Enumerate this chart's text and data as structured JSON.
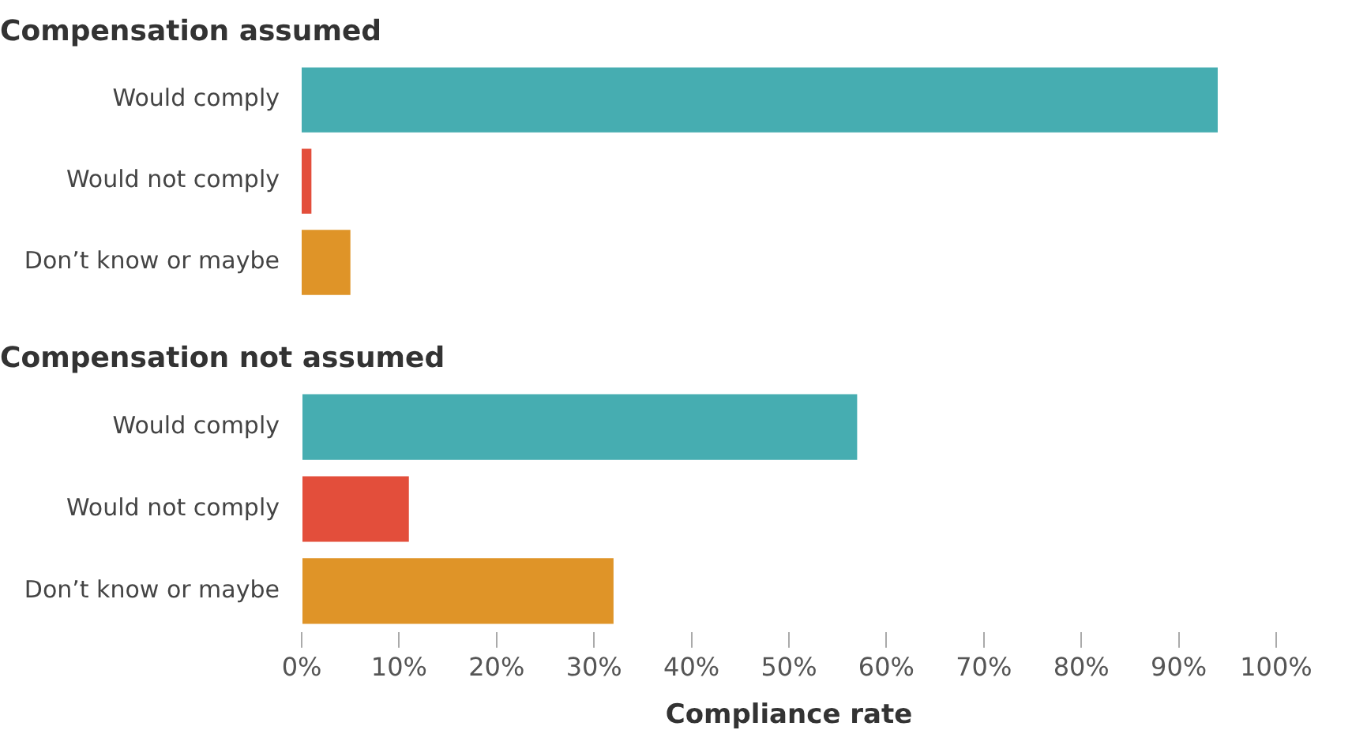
{
  "chart_data": [
    {
      "type": "bar",
      "orientation": "horizontal",
      "title": "Compensation assumed",
      "categories": [
        "Would comply",
        "Would not comply",
        "Don’t know or maybe"
      ],
      "values": [
        94,
        1,
        5
      ],
      "colors": [
        "#46adb1",
        "#e34e3b",
        "#df9428"
      ],
      "xlim": [
        0,
        100
      ],
      "tick_labels": "y",
      "grid": false,
      "legend": false
    },
    {
      "type": "bar",
      "orientation": "horizontal",
      "title": "Compensation not assumed",
      "categories": [
        "Would comply",
        "Would not comply",
        "Don’t know or maybe"
      ],
      "values": [
        57,
        11,
        32
      ],
      "colors": [
        "#46adb1",
        "#e34e3b",
        "#df9428"
      ],
      "xlim": [
        0,
        100
      ],
      "xticks": [
        {
          "value": 0,
          "label": "0%"
        },
        {
          "value": 10,
          "label": "10%"
        },
        {
          "value": 20,
          "label": "20%"
        },
        {
          "value": 30,
          "label": "30%"
        },
        {
          "value": 40,
          "label": "40%"
        },
        {
          "value": 50,
          "label": "50%"
        },
        {
          "value": 60,
          "label": "60%"
        },
        {
          "value": 70,
          "label": "70%"
        },
        {
          "value": 80,
          "label": "80%"
        },
        {
          "value": 90,
          "label": "90%"
        },
        {
          "value": 100,
          "label": "100%"
        }
      ],
      "xlabel": "Compliance rate",
      "grid": false,
      "legend": false
    }
  ]
}
